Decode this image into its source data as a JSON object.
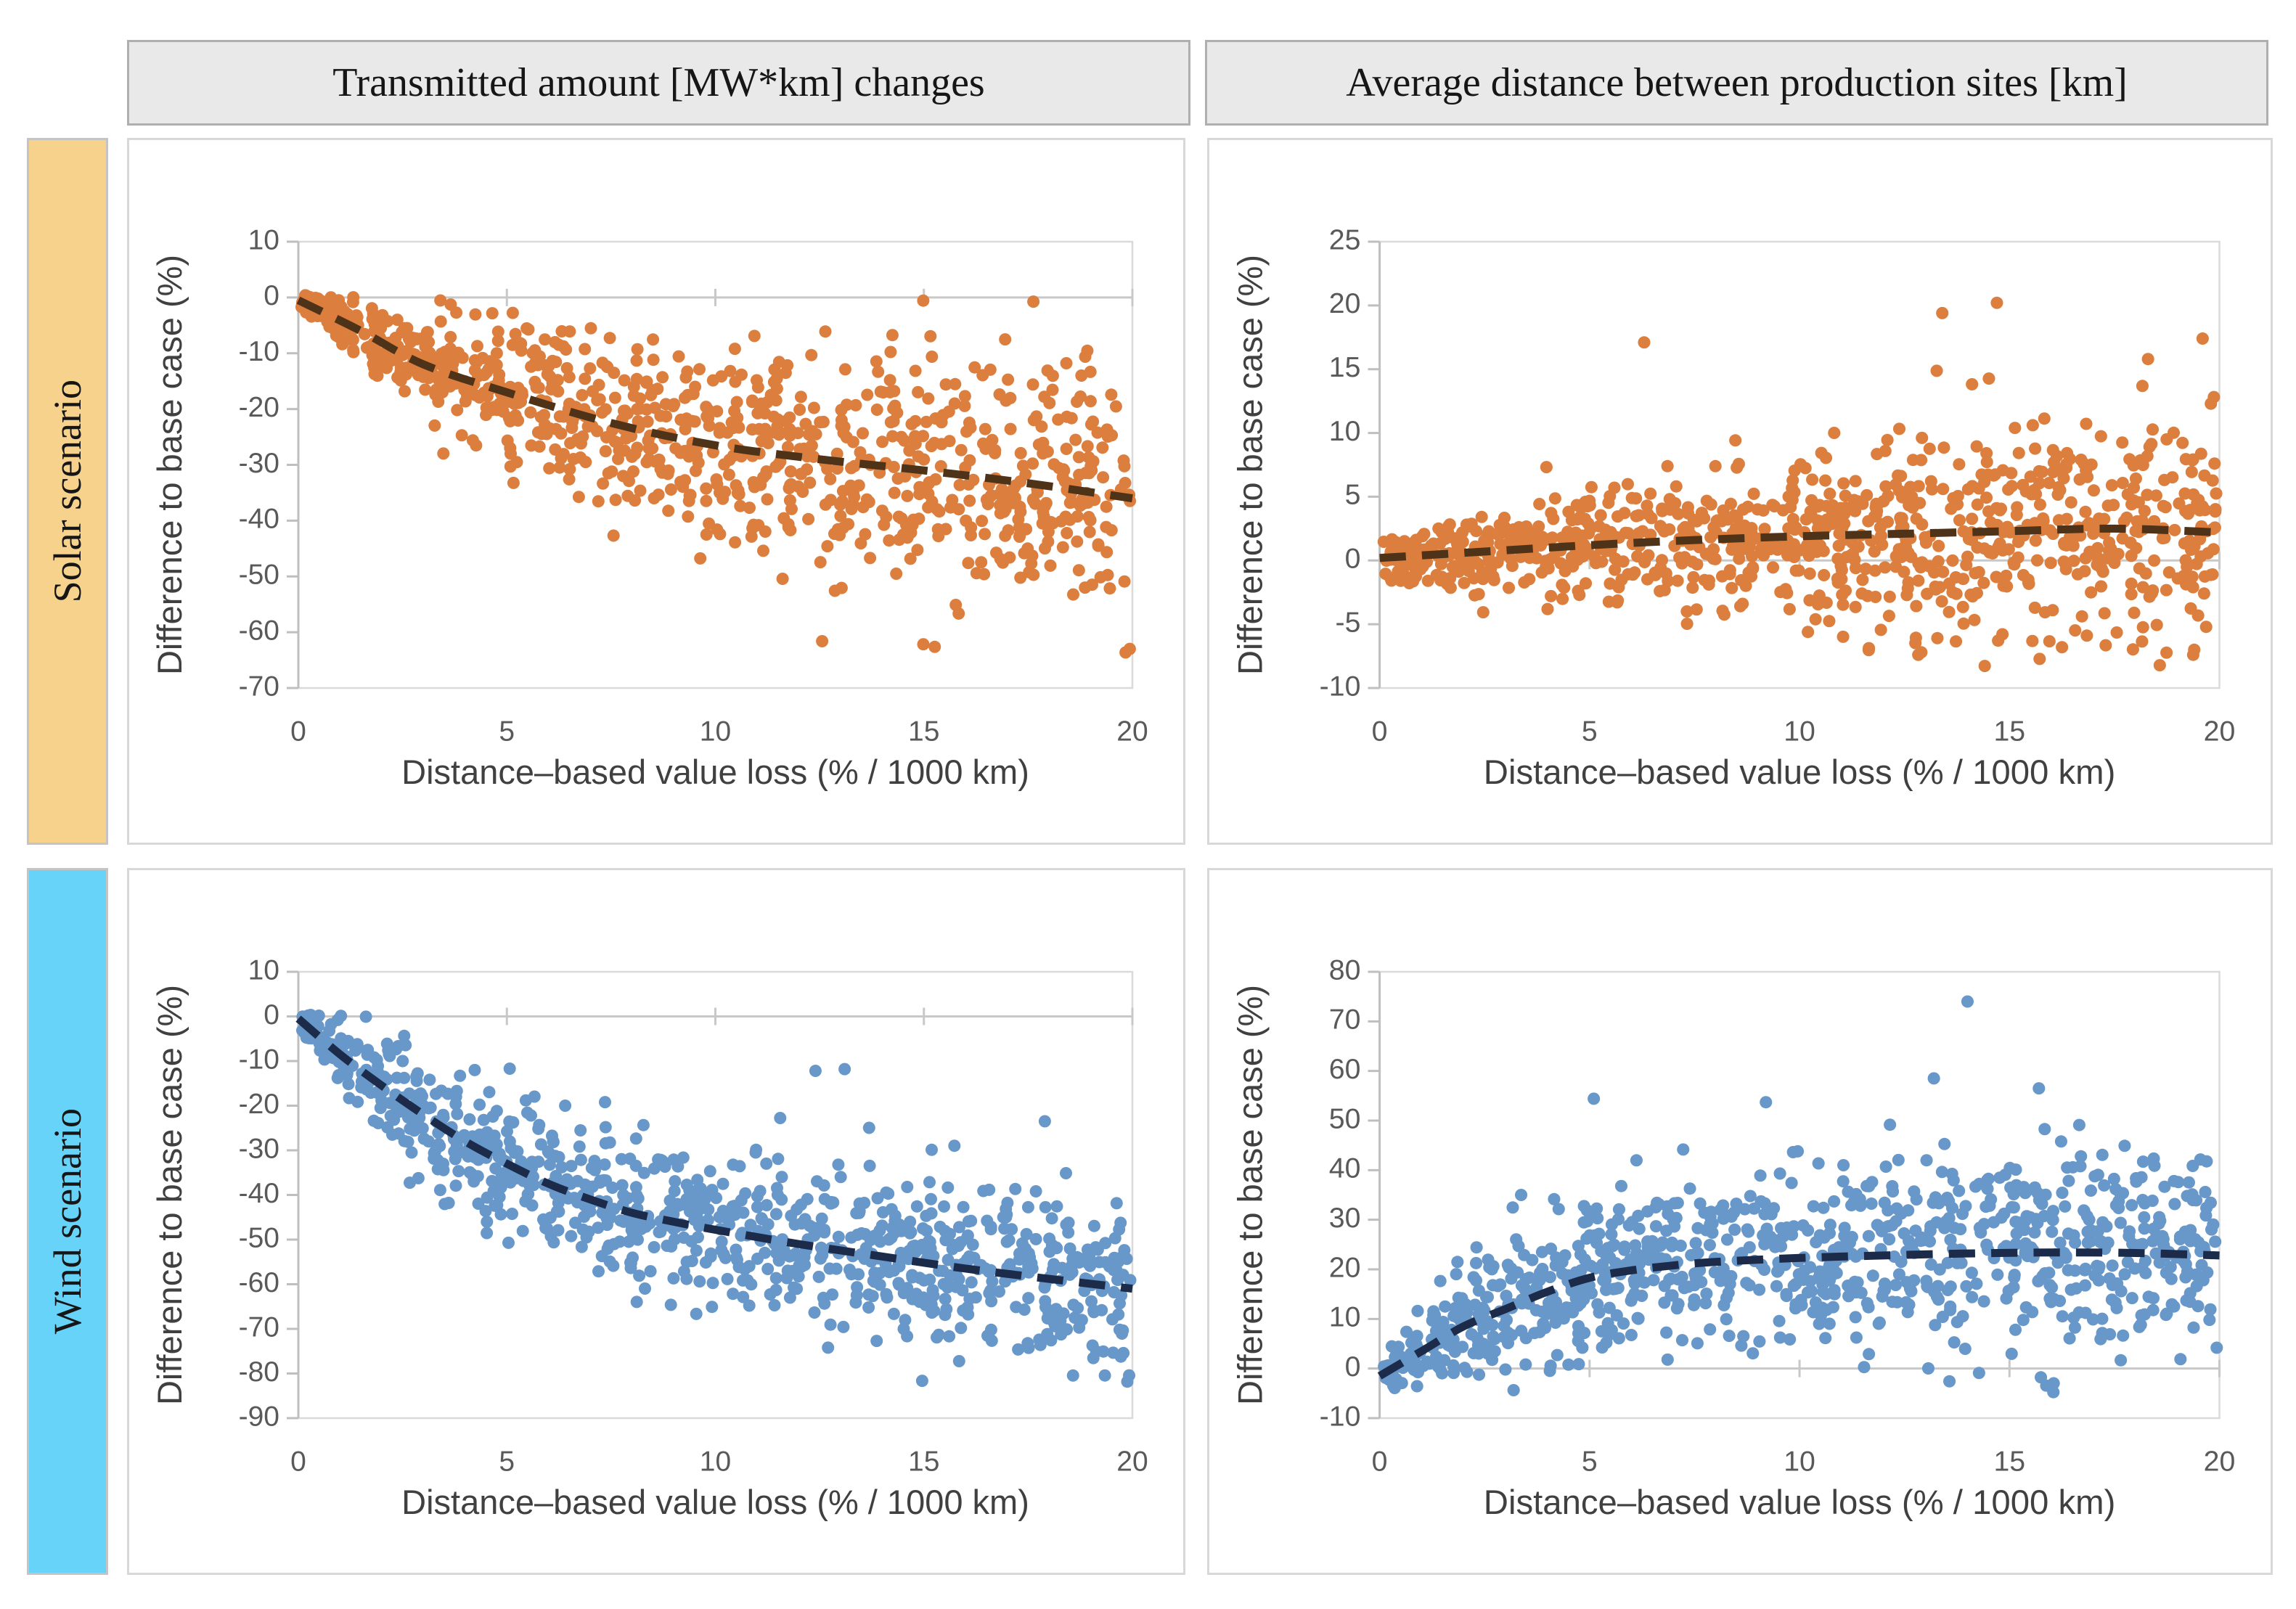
{
  "figure": {
    "column_headers": [
      "Transmitted amount [MW*km] changes",
      "Average distance between production sites [km]"
    ],
    "row_labels": [
      {
        "label": "Solar scenario",
        "color": "#F6D28C"
      },
      {
        "label": "Wind scenario",
        "color": "#67D3F8"
      }
    ],
    "header_bg": "#E9E9E9"
  },
  "chart_data": [
    {
      "id": "solar-transmitted",
      "type": "scatter",
      "scenario": "Solar scenario",
      "metric": "Transmitted amount [MW*km] changes",
      "xlabel": "Distance–based value loss (% / 1000 km)",
      "ylabel": "Difference to base case (%)",
      "xlim": [
        0,
        20
      ],
      "ylim": [
        -70,
        10
      ],
      "xticks": [
        0,
        5,
        10,
        15,
        20
      ],
      "yticks": [
        10,
        0,
        -10,
        -20,
        -30,
        -40,
        -50,
        -60,
        -70
      ],
      "point_color": "#DC7E3E",
      "trend_color": "#4F3319",
      "n_points": 950,
      "seed": 11,
      "trend": [
        [
          0,
          -0.5
        ],
        [
          1.5,
          -6
        ],
        [
          3,
          -12
        ],
        [
          5,
          -17
        ],
        [
          7.5,
          -22.5
        ],
        [
          10,
          -26.5
        ],
        [
          12.5,
          -29
        ],
        [
          15,
          -31
        ],
        [
          17.5,
          -33.3
        ],
        [
          20,
          -36
        ]
      ],
      "spread": [
        [
          0,
          0.9
        ],
        [
          2,
          3.2
        ],
        [
          5,
          6.3
        ],
        [
          10,
          9.2
        ],
        [
          15,
          10.5
        ],
        [
          20,
          11.5
        ]
      ],
      "y_soft": [
        -64,
        0.4
      ],
      "outliers": []
    },
    {
      "id": "solar-distance",
      "type": "scatter",
      "scenario": "Solar scenario",
      "metric": "Average distance between production sites [km]",
      "xlabel": "Distance–based value loss (% / 1000 km)",
      "ylabel": "Difference to base case (%)",
      "xlim": [
        0,
        20
      ],
      "ylim": [
        -10,
        25
      ],
      "xticks": [
        0,
        5,
        10,
        15,
        20
      ],
      "yticks": [
        25,
        20,
        15,
        10,
        5,
        0,
        -5,
        -10
      ],
      "point_color": "#DC7E3E",
      "trend_color": "#4F3319",
      "n_points": 950,
      "seed": 22,
      "trend": [
        [
          0,
          0.2
        ],
        [
          2.5,
          0.7
        ],
        [
          5,
          1.2
        ],
        [
          7.5,
          1.6
        ],
        [
          10,
          1.9
        ],
        [
          12.5,
          2.1
        ],
        [
          15,
          2.3
        ],
        [
          17.5,
          2.5
        ],
        [
          20,
          2.2
        ]
      ],
      "spread": [
        [
          0,
          0.7
        ],
        [
          2,
          1.4
        ],
        [
          5,
          2.2
        ],
        [
          10,
          3.2
        ],
        [
          15,
          4.2
        ],
        [
          20,
          4.4
        ]
      ],
      "y_soft": [
        -8.3,
        20.4
      ],
      "outliers": [
        [
          6.3,
          17.1
        ],
        [
          13.4,
          19.4
        ],
        [
          14.7,
          20.2
        ],
        [
          18.3,
          15.8
        ],
        [
          19.6,
          17.4
        ],
        [
          12.9,
          -7.2
        ],
        [
          19.4,
          -7.0
        ],
        [
          10.2,
          -5.6
        ]
      ]
    },
    {
      "id": "wind-transmitted",
      "type": "scatter",
      "scenario": "Wind scenario",
      "metric": "Transmitted amount [MW*km] changes",
      "xlabel": "Distance–based value loss (% / 1000 km)",
      "ylabel": "Difference to base case (%)",
      "xlim": [
        0,
        20
      ],
      "ylim": [
        -90,
        10
      ],
      "xticks": [
        0,
        5,
        10,
        15,
        20
      ],
      "yticks": [
        10,
        0,
        -10,
        -20,
        -30,
        -40,
        -50,
        -60,
        -70,
        -80,
        -90
      ],
      "point_color": "#6897C9",
      "trend_color": "#1C2B49",
      "n_points": 950,
      "seed": 33,
      "trend": [
        [
          0,
          -0.5
        ],
        [
          1,
          -8.5
        ],
        [
          2,
          -15.5
        ],
        [
          3,
          -22
        ],
        [
          4,
          -28
        ],
        [
          5,
          -33
        ],
        [
          6,
          -37.5
        ],
        [
          7,
          -41
        ],
        [
          8,
          -44
        ],
        [
          9,
          -46
        ],
        [
          10,
          -47.8
        ],
        [
          12,
          -51
        ],
        [
          14,
          -53.8
        ],
        [
          16,
          -56.5
        ],
        [
          18,
          -58.8
        ],
        [
          20,
          -61
        ]
      ],
      "spread": [
        [
          0,
          1.3
        ],
        [
          1,
          4
        ],
        [
          2,
          6
        ],
        [
          5,
          8
        ],
        [
          10,
          8.5
        ],
        [
          15,
          9
        ],
        [
          20,
          9.5
        ]
      ],
      "y_soft": [
        -82,
        0.4
      ],
      "outliers": [
        [
          13.1,
          -11.8
        ],
        [
          12.4,
          -12.2
        ],
        [
          17.9,
          -23.5
        ]
      ]
    },
    {
      "id": "wind-distance",
      "type": "scatter",
      "scenario": "Wind scenario",
      "metric": "Average distance between production sites [km]",
      "xlabel": "Distance–based value loss (% / 1000 km)",
      "ylabel": "Difference to base case (%)",
      "xlim": [
        0,
        20
      ],
      "ylim": [
        -10,
        80
      ],
      "xticks": [
        0,
        5,
        10,
        15,
        20
      ],
      "yticks": [
        80,
        70,
        60,
        50,
        40,
        30,
        20,
        10,
        0,
        -10
      ],
      "point_color": "#6897C9",
      "trend_color": "#1C2B49",
      "n_points": 950,
      "seed": 44,
      "trend": [
        [
          0,
          -1.5
        ],
        [
          1,
          3.5
        ],
        [
          2,
          8.5
        ],
        [
          3,
          12
        ],
        [
          4,
          15.5
        ],
        [
          5,
          18.3
        ],
        [
          6,
          19.8
        ],
        [
          7,
          20.8
        ],
        [
          8,
          21.5
        ],
        [
          10,
          22.3
        ],
        [
          12,
          22.8
        ],
        [
          14,
          23.2
        ],
        [
          16,
          23.4
        ],
        [
          18,
          23.3
        ],
        [
          20,
          22.8
        ]
      ],
      "spread": [
        [
          0,
          1.6
        ],
        [
          1,
          3.5
        ],
        [
          2,
          5.5
        ],
        [
          5,
          8
        ],
        [
          10,
          9.5
        ],
        [
          15,
          10.5
        ],
        [
          20,
          10.5
        ]
      ],
      "y_soft": [
        -4.8,
        76
      ],
      "outliers": [
        [
          14.0,
          74.0
        ],
        [
          13.2,
          58.5
        ],
        [
          15.7,
          56.5
        ],
        [
          5.1,
          54.4
        ],
        [
          9.2,
          53.7
        ]
      ]
    }
  ],
  "style": {
    "axis_line": "#BFBFBF",
    "zero_line": "#C8C8C8",
    "plot_border": "#DADADA",
    "tick_text": "#595959",
    "title_text": "#404040"
  }
}
